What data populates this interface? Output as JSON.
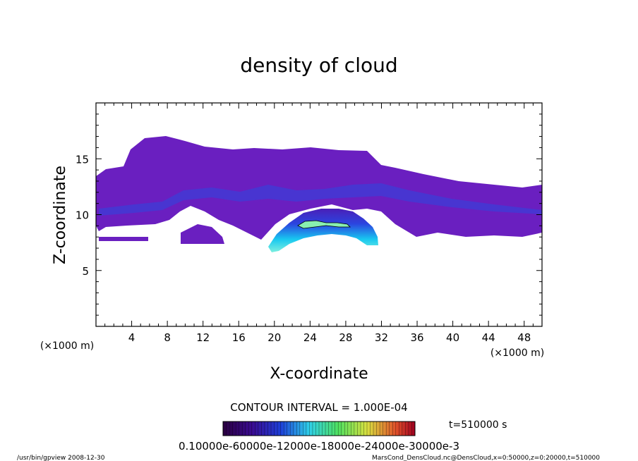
{
  "chart_data": {
    "type": "heatmap",
    "title": "density of cloud",
    "xlabel": "X-coordinate",
    "ylabel": "Z-coordinate",
    "x_unit": "(×1000 m)",
    "y_unit": "(×1000 m)",
    "xlim": [
      0,
      50
    ],
    "ylim": [
      0,
      20
    ],
    "x_ticks": [
      "4",
      "8",
      "12",
      "16",
      "20",
      "24",
      "28",
      "32",
      "36",
      "40",
      "44",
      "48"
    ],
    "y_ticks": [
      "5",
      "10",
      "15"
    ],
    "contour_interval": "CONTOUR INTERVAL = 1.000E-04",
    "time_label": "t=510000 s",
    "colorbar_labels": [
      "0.10000e-60000e-12000e-18000e-24000e-30000e-3"
    ],
    "colorbar_range": [
      0.0,
      0.0003
    ],
    "colors": {
      "low": "#4b0078",
      "mid_low": "#7a28c8",
      "mid": "#2f3fd6",
      "high": "#00d8ff",
      "core": "#7ef0c8"
    },
    "cloud_regions": [
      {
        "name": "upper cloud layer",
        "x": [
          1,
          50
        ],
        "z": [
          9,
          16.8
        ],
        "level": "low"
      },
      {
        "name": "dense core",
        "x": [
          19.5,
          30.5
        ],
        "z": [
          6.8,
          10.2
        ],
        "level": "high"
      }
    ]
  },
  "footer": {
    "left": "/usr/bin/gpview   2008-12-30",
    "right": "MarsCond_DensCloud.nc@DensCloud,x=0:50000,z=0:20000,t=510000"
  }
}
